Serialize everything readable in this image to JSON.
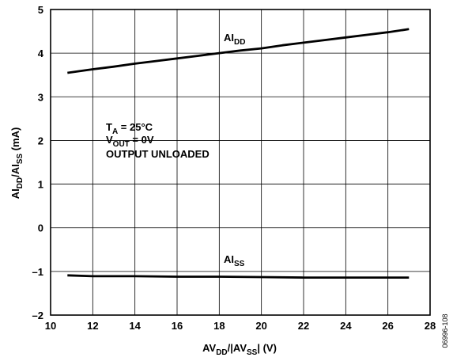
{
  "chart_data": {
    "type": "line",
    "xlabel": {
      "base": "AV",
      "sub1": "DD",
      "mid": "/|AV",
      "sub2": "SS",
      "end": "| (V)"
    },
    "ylabel": {
      "p1": "AI",
      "s1": "DD",
      "p2": "/AI",
      "s2": "SS",
      "p3": " (mA)"
    },
    "xlim": [
      10,
      28
    ],
    "ylim": [
      -2,
      5
    ],
    "xticks": [
      "10",
      "12",
      "14",
      "16",
      "18",
      "20",
      "22",
      "24",
      "26",
      "28"
    ],
    "yticks": [
      "–2",
      "–1",
      "0",
      "1",
      "2",
      "3",
      "4",
      "5"
    ],
    "grid": true,
    "series": [
      {
        "name": "AI_DD",
        "label": {
          "base": "AI",
          "sub": "DD"
        },
        "x": [
          10.8,
          12,
          13,
          14,
          15,
          16,
          17,
          18,
          19,
          20,
          21,
          22,
          23,
          24,
          25,
          26,
          27
        ],
        "values": [
          3.55,
          3.63,
          3.69,
          3.76,
          3.82,
          3.88,
          3.94,
          4.0,
          4.06,
          4.11,
          4.18,
          4.24,
          4.3,
          4.36,
          4.42,
          4.48,
          4.55
        ]
      },
      {
        "name": "AI_SS",
        "label": {
          "base": "AI",
          "sub": "SS"
        },
        "x": [
          10.8,
          12,
          14,
          16,
          18,
          20,
          22,
          24,
          27
        ],
        "values": [
          -1.09,
          -1.11,
          -1.11,
          -1.12,
          -1.12,
          -1.13,
          -1.14,
          -1.14,
          -1.14
        ]
      }
    ],
    "annotations": {
      "temp": {
        "p1": "T",
        "s1": "A",
        "p2": " = 25°C"
      },
      "vout": {
        "p1": "V",
        "s1": "OUT",
        "p2": " = 0V"
      },
      "load": "OUTPUT UNLOADED"
    },
    "figure_code": "06996-108"
  }
}
